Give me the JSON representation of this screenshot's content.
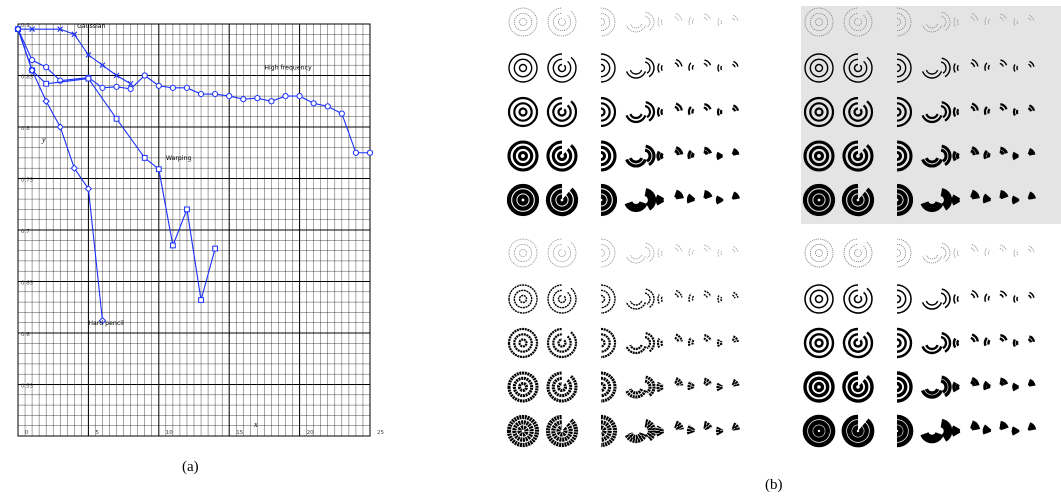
{
  "panel_a": {
    "caption": "(a)",
    "chart_data": {
      "type": "line",
      "title": "",
      "xlabel": "x",
      "ylabel": "y",
      "xlim": [
        0,
        25
      ],
      "ylim": [
        0.5,
        0.9
      ],
      "grid": true,
      "x_ticks": [
        0,
        5,
        10,
        15,
        20,
        25
      ],
      "x_tick_labels": [
        "0",
        "5",
        "10",
        "15",
        "20",
        "25"
      ],
      "y_ticks": [
        0.55,
        0.6,
        0.65,
        0.7,
        0.75,
        0.8,
        0.85,
        0.9
      ],
      "y_tick_labels": [
        "0.55",
        "0.6",
        "0.65",
        "0.7",
        "0.75",
        "0.8",
        "0.85",
        "0.9"
      ],
      "color": "#1a2fff",
      "series": [
        {
          "name": "Gaussian",
          "marker": "x",
          "label_pos": {
            "x": 4.2,
            "y": 0.896
          },
          "x": [
            0,
            1,
            3,
            4,
            5,
            6,
            7,
            8
          ],
          "y": [
            0.895,
            0.895,
            0.895,
            0.89,
            0.87,
            0.86,
            0.85,
            0.842
          ]
        },
        {
          "name": "High frequency",
          "marker": "o",
          "label_pos": {
            "x": 17.5,
            "y": 0.856
          },
          "x": [
            0,
            1,
            2,
            3,
            5,
            6,
            7,
            8,
            9,
            10,
            11,
            12,
            13,
            14,
            15,
            16,
            17,
            18,
            19,
            20,
            21,
            22,
            23,
            24,
            25
          ],
          "y": [
            0.895,
            0.865,
            0.858,
            0.845,
            0.848,
            0.838,
            0.839,
            0.837,
            0.85,
            0.84,
            0.838,
            0.838,
            0.832,
            0.832,
            0.83,
            0.827,
            0.828,
            0.825,
            0.83,
            0.83,
            0.823,
            0.82,
            0.813,
            0.775,
            0.775
          ]
        },
        {
          "name": "Warping",
          "marker": "square",
          "label_pos": {
            "x": 10.5,
            "y": 0.768
          },
          "x": [
            0,
            1,
            2,
            5,
            7,
            9,
            10,
            11,
            12,
            13,
            14
          ],
          "y": [
            0.895,
            0.855,
            0.842,
            0.847,
            0.808,
            0.77,
            0.759,
            0.685,
            0.72,
            0.632,
            0.682
          ]
        },
        {
          "name": "Hard pencil",
          "marker": "diamond",
          "label_pos": {
            "x": 5,
            "y": 0.608
          },
          "x": [
            0,
            1,
            2,
            3,
            4,
            5,
            6
          ],
          "y": [
            0.895,
            0.855,
            0.825,
            0.8,
            0.76,
            0.74,
            0.612
          ]
        }
      ]
    }
  },
  "panel_b": {
    "caption": "(b)",
    "quadrant_names": [
      "top-left",
      "top-right",
      "bottom-left",
      "bottom-right"
    ],
    "rows": 5,
    "cols": 7
  }
}
